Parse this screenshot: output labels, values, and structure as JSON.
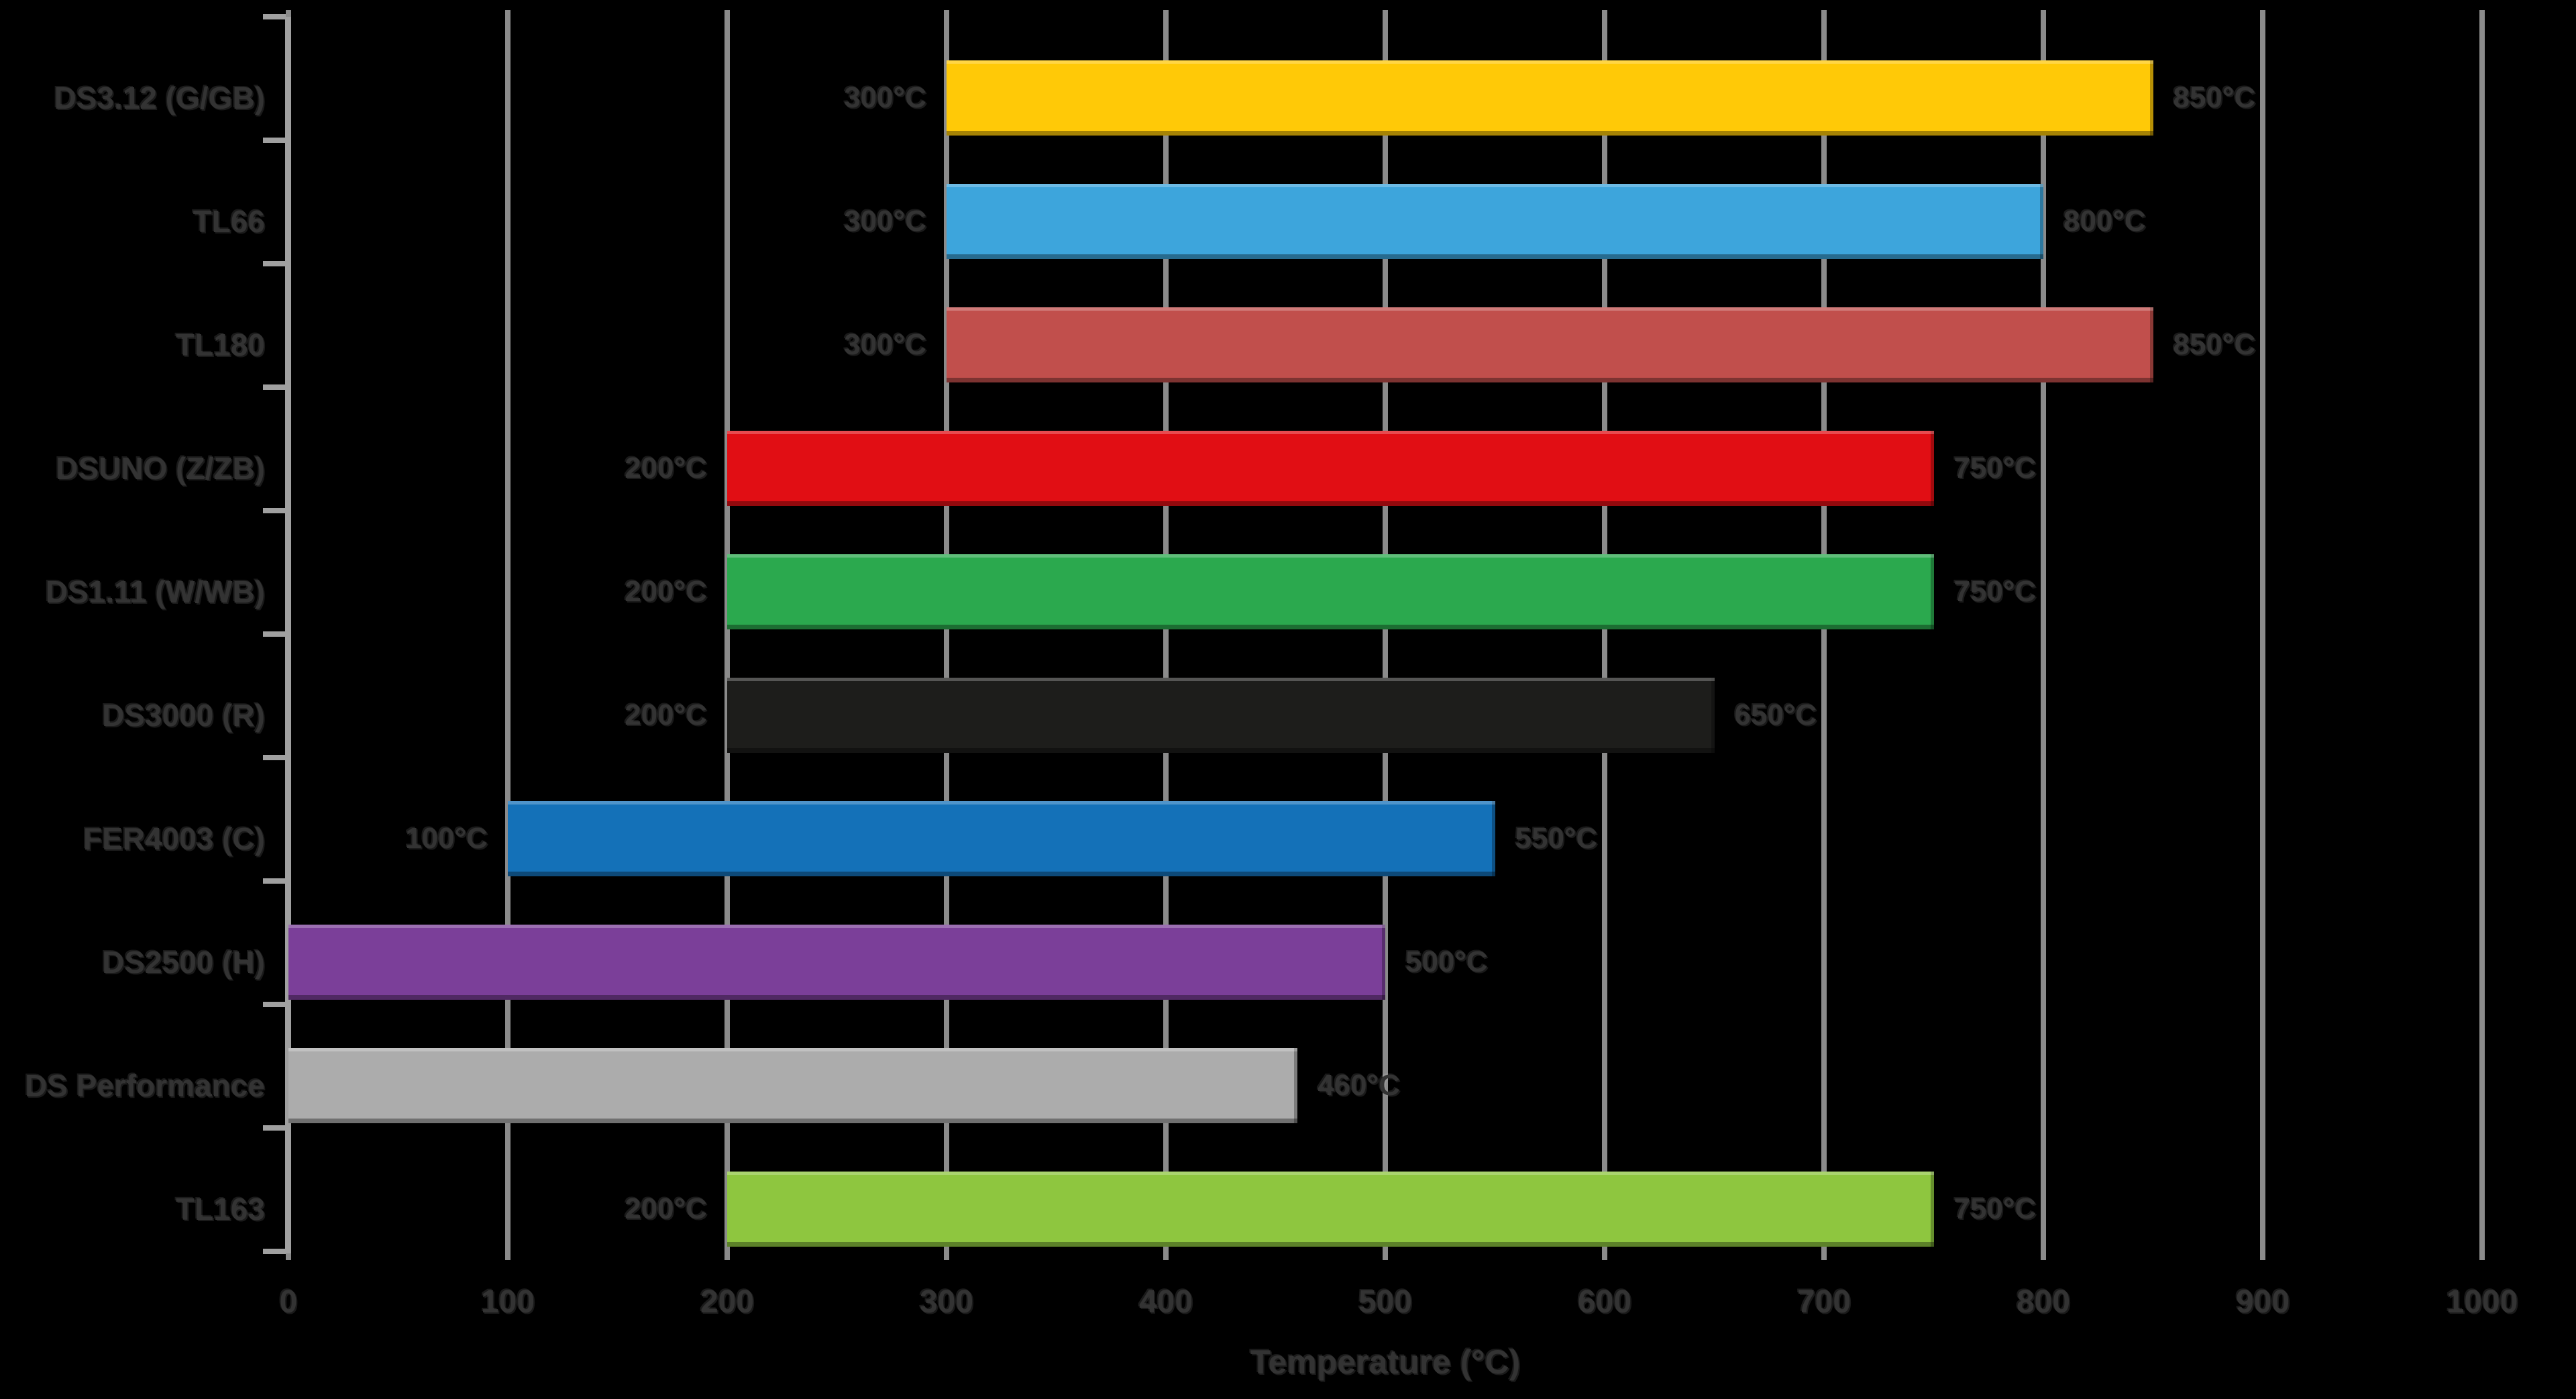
{
  "chart_data": {
    "type": "bar",
    "subtype": "horizontal-range-bars",
    "title": "",
    "xlabel": "Temperature (°C)",
    "xlim": [
      0,
      1000
    ],
    "x_ticks": [
      0,
      100,
      200,
      300,
      400,
      500,
      600,
      700,
      800,
      900,
      1000
    ],
    "grid": "vertical-gridlines-on",
    "legend": "none",
    "categories": [
      "DS3.12 (G/GB)",
      "TL66",
      "TL180",
      "DSUNO (Z/ZB)",
      "DS1.11 (W/WB)",
      "DS3000 (R)",
      "FER4003 (C)",
      "DS2500 (H)",
      "DS Performance",
      "TL163"
    ],
    "rows": [
      {
        "name": "DS3.12 (G/GB)",
        "min": 300,
        "max": 850,
        "min_label": "300°C",
        "max_label": "850°C",
        "color": "#FFC907"
      },
      {
        "name": "TL66",
        "min": 300,
        "max": 800,
        "min_label": "300°C",
        "max_label": "800°C",
        "color": "#3DA5DC"
      },
      {
        "name": "TL180",
        "min": 300,
        "max": 850,
        "min_label": "300°C",
        "max_label": "850°C",
        "color": "#C14F4C"
      },
      {
        "name": "DSUNO (Z/ZB)",
        "min": 200,
        "max": 750,
        "min_label": "200°C",
        "max_label": "750°C",
        "color": "#E10E14"
      },
      {
        "name": "DS1.11 (W/WB)",
        "min": 200,
        "max": 750,
        "min_label": "200°C",
        "max_label": "750°C",
        "color": "#2BA94E"
      },
      {
        "name": "DS3000 (R)",
        "min": 200,
        "max": 650,
        "min_label": "200°C",
        "max_label": "650°C",
        "color": "#1D1D1B"
      },
      {
        "name": "FER4003 (C)",
        "min": 100,
        "max": 550,
        "min_label": "100°C",
        "max_label": "550°C",
        "color": "#1471B8"
      },
      {
        "name": "DS2500 (H)",
        "min": 0,
        "max": 500,
        "min_label": "",
        "max_label": "500°C",
        "color": "#7B3F99"
      },
      {
        "name": "DS Performance",
        "min": 0,
        "max": 460,
        "min_label": "",
        "max_label": "460°C",
        "color": "#ACACAC"
      },
      {
        "name": "TL163",
        "min": 200,
        "max": 750,
        "min_label": "200°C",
        "max_label": "750°C",
        "color": "#8EC63F"
      }
    ],
    "colors": {
      "background": "#000000",
      "gridline": "#8B8B8B",
      "axis": "#A0A0A0",
      "text": "#333333"
    }
  }
}
